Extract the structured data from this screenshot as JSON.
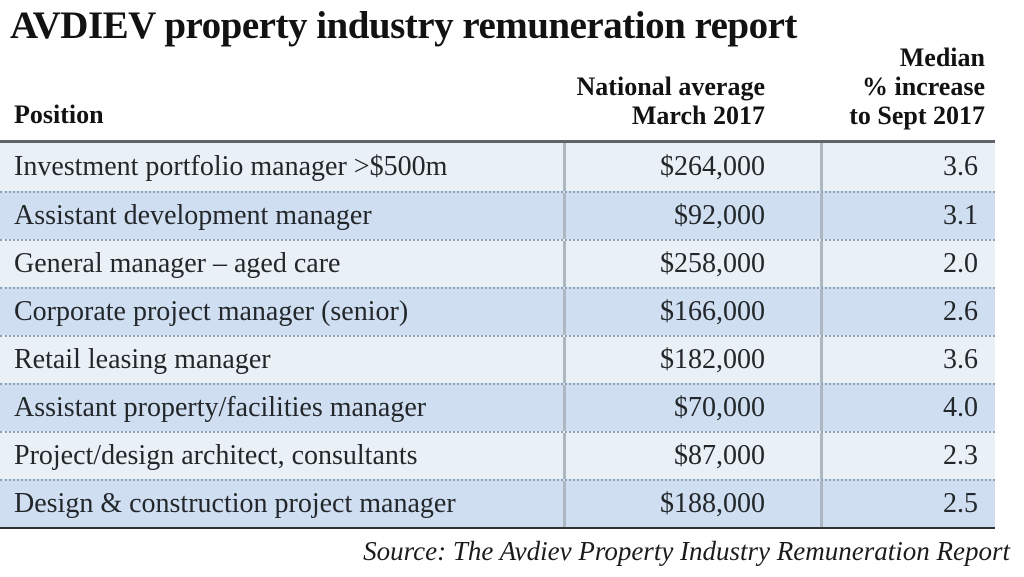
{
  "chart_data": {
    "type": "table",
    "title": "AVDIEV property industry remuneration report",
    "header": {
      "position": "Position",
      "national_average_lines": [
        "National average",
        "March 2017"
      ],
      "median_increase_lines": [
        "Median",
        "% increase",
        "to Sept 2017"
      ]
    },
    "columns": [
      "Position",
      "National average March 2017",
      "Median % increase to Sept 2017"
    ],
    "rows": [
      {
        "position": "Investment portfolio manager >$500m",
        "national_average": "$264,000",
        "median_increase": "3.6"
      },
      {
        "position": "Assistant development manager",
        "national_average": "$92,000",
        "median_increase": "3.1"
      },
      {
        "position": "General manager – aged care",
        "national_average": "$258,000",
        "median_increase": "2.0"
      },
      {
        "position": "Corporate project manager (senior)",
        "national_average": "$166,000",
        "median_increase": "2.6"
      },
      {
        "position": "Retail leasing manager",
        "national_average": "$182,000",
        "median_increase": "3.6"
      },
      {
        "position": "Assistant property/facilities manager",
        "national_average": "$70,000",
        "median_increase": "4.0"
      },
      {
        "position": "Project/design architect, consultants",
        "national_average": "$87,000",
        "median_increase": "2.3"
      },
      {
        "position": "Design & construction project manager",
        "national_average": "$188,000",
        "median_increase": "2.5"
      }
    ],
    "source": "Source: The Avdiev Property Industry Remuneration Report",
    "layout": {
      "grid": "off",
      "row_striping": "alternating light/shaded starting light",
      "value_alignment": "right"
    }
  },
  "colors": {
    "row_light": "#e9f0f6",
    "row_shaded": "#cfdef0",
    "column_separator": "#adb7bf",
    "row_divider_dotted": "#8ea2b6",
    "rule_top": "#5e6469",
    "rule_bottom": "#2d3237",
    "text": "#23272b"
  }
}
